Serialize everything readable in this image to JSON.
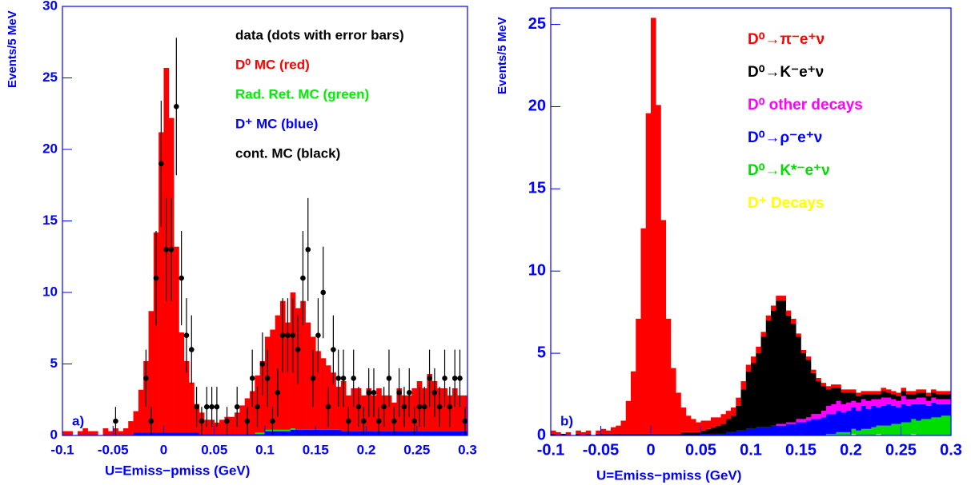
{
  "chart_data": [
    {
      "type": "histogram",
      "panel_label": "a)",
      "xlabel": "U=Emiss−pmiss (GeV)",
      "ylabel": "Events/5 MeV",
      "xlim": [
        -0.1,
        0.3
      ],
      "ylim": [
        0,
        30
      ],
      "xticks": [
        -0.1,
        -0.05,
        0,
        0.05,
        0.1,
        0.15,
        0.2,
        0.25,
        0.3
      ],
      "yticks": [
        0,
        5,
        10,
        15,
        20,
        25,
        30
      ],
      "legend": "upper right",
      "axis_color": "#0000ff",
      "bins": [
        -0.1,
        -0.095,
        -0.09,
        -0.085,
        -0.08,
        -0.075,
        -0.07,
        -0.065,
        -0.06,
        -0.055,
        -0.05,
        -0.045,
        -0.04,
        -0.035,
        -0.03,
        -0.025,
        -0.02,
        -0.015,
        -0.01,
        -0.005,
        0,
        0.005,
        0.01,
        0.015,
        0.02,
        0.025,
        0.03,
        0.035,
        0.04,
        0.045,
        0.05,
        0.055,
        0.06,
        0.065,
        0.07,
        0.075,
        0.08,
        0.085,
        0.09,
        0.095,
        0.1,
        0.105,
        0.11,
        0.115,
        0.12,
        0.125,
        0.13,
        0.135,
        0.14,
        0.145,
        0.15,
        0.155,
        0.16,
        0.165,
        0.17,
        0.175,
        0.18,
        0.185,
        0.19,
        0.195,
        0.2,
        0.205,
        0.21,
        0.215,
        0.22,
        0.225,
        0.23,
        0.235,
        0.24,
        0.245,
        0.25,
        0.255,
        0.26,
        0.265,
        0.27,
        0.275,
        0.28,
        0.285,
        0.29,
        0.295,
        0.3
      ],
      "points": {
        "name": "data (dots with error bars)",
        "color": "#000000",
        "values": [
          null,
          null,
          null,
          null,
          null,
          null,
          null,
          null,
          null,
          null,
          1,
          null,
          null,
          null,
          null,
          null,
          4,
          1,
          11,
          19,
          13,
          13,
          23,
          11,
          7,
          6,
          2,
          1,
          2,
          2,
          2,
          null,
          1,
          null,
          2,
          null,
          1,
          4,
          2,
          5,
          4,
          1,
          3,
          7,
          7,
          7,
          6,
          11,
          13,
          4,
          7,
          10,
          2,
          6,
          4,
          4,
          1,
          4,
          2,
          1,
          3,
          3,
          1,
          2,
          4,
          1,
          3,
          2,
          3,
          1,
          2,
          2,
          4,
          3,
          2,
          4,
          2,
          4,
          4,
          1
        ],
        "errors": [
          null,
          null,
          null,
          null,
          null,
          null,
          null,
          null,
          null,
          null,
          1,
          null,
          null,
          null,
          null,
          null,
          2,
          1,
          3.3,
          4.4,
          3.6,
          3.6,
          4.8,
          3.3,
          2.6,
          2.4,
          1.4,
          1,
          1.4,
          1.4,
          1.4,
          null,
          1,
          null,
          1.4,
          null,
          1,
          2,
          1.4,
          2.2,
          2,
          1,
          1.7,
          2.6,
          2.6,
          2.6,
          2.4,
          3.3,
          3.6,
          2,
          2.6,
          3.2,
          1.4,
          2.4,
          2,
          2,
          1,
          2,
          1.4,
          1,
          1.7,
          1.7,
          1,
          1.4,
          2,
          1,
          1.7,
          1.4,
          1.7,
          1,
          1.4,
          1.4,
          2,
          1.7,
          1.4,
          2,
          1.4,
          2,
          2,
          1
        ]
      },
      "series": [
        {
          "name": "D⁰ MC (red)",
          "color": "#ff0000",
          "values": [
            0.3,
            0.3,
            0,
            0.3,
            0.5,
            0.3,
            0.3,
            0,
            0.5,
            0.3,
            0.5,
            0.3,
            0.5,
            1,
            1.5,
            3,
            5,
            8.5,
            14,
            21,
            25.5,
            22,
            13,
            7,
            5,
            3.5,
            2,
            1.5,
            1,
            1,
            0.8,
            1,
            1.2,
            1.2,
            1.5,
            2,
            2.5,
            3,
            4,
            5,
            6.5,
            7,
            8,
            9,
            7.5,
            9.5,
            8.5,
            9,
            7.5,
            6.5,
            5.5,
            5,
            4.5,
            4,
            3,
            3.5,
            2.5,
            3,
            3,
            2.5,
            3,
            2.5,
            3,
            2.5,
            2.5,
            2,
            3,
            2.5,
            2.5,
            3,
            3.5,
            3,
            4,
            3.5,
            3,
            3,
            2.5,
            3,
            2.5,
            2.5
          ]
        },
        {
          "name": "Rad. Ret. MC (green)",
          "color": "#00ee00",
          "values": [
            0,
            0,
            0,
            0,
            0,
            0,
            0,
            0,
            0,
            0,
            0,
            0,
            0,
            0,
            0,
            0,
            0,
            0,
            0,
            0,
            0,
            0,
            0,
            0,
            0,
            0,
            0,
            0,
            0,
            0,
            0,
            0,
            0,
            0,
            0,
            0,
            0,
            0,
            0.1,
            0.1,
            0.1,
            0.1,
            0.1,
            0.1,
            0.1,
            0.1,
            0,
            0,
            0,
            0,
            0,
            0,
            0,
            0,
            0,
            0,
            0,
            0,
            0,
            0,
            0,
            0,
            0,
            0,
            0,
            0,
            0,
            0,
            0,
            0,
            0,
            0,
            0,
            0,
            0,
            0,
            0,
            0,
            0,
            0
          ]
        },
        {
          "name": "D⁺ MC (blue)",
          "color": "#0000ff",
          "values": [
            0,
            0,
            0,
            0,
            0,
            0,
            0,
            0,
            0,
            0,
            0,
            0,
            0,
            0,
            0.2,
            0.2,
            0.2,
            0.2,
            0.2,
            0.2,
            0.2,
            0.2,
            0.2,
            0.2,
            0.2,
            0.2,
            0.2,
            0.1,
            0.1,
            0.1,
            0.1,
            0.1,
            0.1,
            0.1,
            0.1,
            0.1,
            0.1,
            0.1,
            0.1,
            0.1,
            0.3,
            0.3,
            0.3,
            0.3,
            0.3,
            0.3,
            0.3,
            0.3,
            0.3,
            0.3,
            0.3,
            0.3,
            0.3,
            0.3,
            0.3,
            0.3,
            0.3,
            0.3,
            0.3,
            0.3,
            0.3,
            0.3,
            0.3,
            0.3,
            0.3,
            0.3,
            0.3,
            0.3,
            0.3,
            0.3,
            0.3,
            0.3,
            0.3,
            0.3,
            0.3,
            0.3,
            0.3,
            0.3,
            0.3,
            0.3
          ]
        },
        {
          "name": "cont. MC (black)",
          "color": "#000000",
          "values": [
            0,
            0,
            0,
            0,
            0,
            0,
            0,
            0,
            0,
            0,
            0,
            0,
            0,
            0,
            0,
            0,
            0,
            0,
            0,
            0,
            0,
            0,
            0,
            0,
            0,
            0,
            0,
            0,
            0,
            0,
            0,
            0,
            0,
            0,
            0,
            0,
            0,
            0,
            0,
            0,
            0,
            0,
            0,
            0,
            0,
            0.1,
            0.1,
            0.1,
            0.1,
            0.1,
            0.1,
            0.1,
            0.1,
            0.1,
            0.1,
            0,
            0,
            0,
            0,
            0,
            0,
            0,
            0,
            0,
            0,
            0,
            0,
            0,
            0,
            0,
            0,
            0,
            0,
            0,
            0,
            0,
            0,
            0,
            0,
            0
          ]
        }
      ]
    },
    {
      "type": "histogram",
      "panel_label": "b)",
      "xlabel": "U=Emiss−pmiss (GeV)",
      "ylabel": "Events/5 MeV",
      "xlim": [
        -0.1,
        0.3
      ],
      "ylim": [
        0,
        26
      ],
      "xticks": [
        -0.1,
        -0.05,
        0,
        0.05,
        0.1,
        0.15,
        0.2,
        0.25,
        0.3
      ],
      "yticks": [
        0,
        5,
        10,
        15,
        20,
        25
      ],
      "legend": "upper right",
      "axis_color": "#0000ff",
      "bins": [
        -0.1,
        -0.095,
        -0.09,
        -0.085,
        -0.08,
        -0.075,
        -0.07,
        -0.065,
        -0.06,
        -0.055,
        -0.05,
        -0.045,
        -0.04,
        -0.035,
        -0.03,
        -0.025,
        -0.02,
        -0.015,
        -0.01,
        -0.005,
        0,
        0.005,
        0.01,
        0.015,
        0.02,
        0.025,
        0.03,
        0.035,
        0.04,
        0.045,
        0.05,
        0.055,
        0.06,
        0.065,
        0.07,
        0.075,
        0.08,
        0.085,
        0.09,
        0.095,
        0.1,
        0.105,
        0.11,
        0.115,
        0.12,
        0.125,
        0.13,
        0.135,
        0.14,
        0.145,
        0.15,
        0.155,
        0.16,
        0.165,
        0.17,
        0.175,
        0.18,
        0.185,
        0.19,
        0.195,
        0.2,
        0.205,
        0.21,
        0.215,
        0.22,
        0.225,
        0.23,
        0.235,
        0.24,
        0.245,
        0.25,
        0.255,
        0.26,
        0.265,
        0.27,
        0.275,
        0.28,
        0.285,
        0.29,
        0.295,
        0.3
      ],
      "series": [
        {
          "name": "D⁰→π⁻e⁺ν",
          "color": "#ff0000",
          "values": [
            0.2,
            0.2,
            0,
            0.2,
            0,
            0.2,
            0.2,
            0.2,
            0,
            0.2,
            0.3,
            0.2,
            0.4,
            0.5,
            0.8,
            2,
            3.8,
            7,
            12.5,
            19.5,
            25.3,
            20,
            13,
            7,
            4,
            2.5,
            1.5,
            1,
            0.8,
            0.6,
            0.6,
            0.5,
            0.6,
            0.5,
            0.6,
            0.5,
            0.5,
            0.5,
            0.5,
            0.4,
            0.4,
            0.4,
            0.3,
            0.3,
            0.3,
            0.3,
            0.3,
            0.3,
            0.3,
            0.2,
            0.2,
            0.2,
            0.2,
            0.2,
            0.2,
            0.2,
            0.2,
            0.2,
            0.2,
            0.2,
            0.2,
            0.2,
            0.2,
            0.2,
            0.2,
            0.2,
            0.2,
            0.2,
            0.2,
            0.2,
            0.2,
            0.2,
            0.2,
            0.2,
            0.2,
            0.2,
            0.2,
            0.2,
            0.2,
            0.2
          ]
        },
        {
          "name": "D⁰→K⁻e⁺ν",
          "color": "#000000",
          "values": [
            0.1,
            0,
            0.1,
            0,
            0,
            0.1,
            0,
            0.1,
            0,
            0.1,
            0.1,
            0.1,
            0.1,
            0.1,
            0.1,
            0.1,
            0.1,
            0.1,
            0.1,
            0.1,
            0.1,
            0.1,
            0.1,
            0.1,
            0.1,
            0.1,
            0.2,
            0.2,
            0.2,
            0.2,
            0.2,
            0.3,
            0.4,
            0.5,
            0.6,
            0.8,
            1,
            1.5,
            2.5,
            3.5,
            4,
            4.5,
            5.5,
            6.5,
            7,
            7.5,
            7.5,
            6.5,
            6,
            5,
            4,
            3.5,
            2.5,
            2,
            1.5,
            1,
            1,
            0.8,
            0.7,
            0.6,
            0.5,
            0.4,
            0.3,
            0.4,
            0.3,
            0.3,
            0.4,
            0.3,
            0.3,
            0.3,
            0.3,
            0.3,
            0.3,
            0.3,
            0.3,
            0.3,
            0.3,
            0.3,
            0.3,
            0.3
          ]
        },
        {
          "name": "D⁰ other decays",
          "color": "#ff00ff",
          "values": [
            0,
            0,
            0,
            0,
            0,
            0,
            0,
            0,
            0,
            0,
            0,
            0,
            0,
            0,
            0,
            0,
            0,
            0,
            0,
            0,
            0,
            0,
            0,
            0,
            0,
            0,
            0,
            0,
            0,
            0,
            0,
            0,
            0,
            0,
            0,
            0,
            0,
            0,
            0,
            0,
            0,
            0,
            0,
            0,
            0,
            0.1,
            0.1,
            0.1,
            0.1,
            0.2,
            0.2,
            0.2,
            0.3,
            0.3,
            0.4,
            0.5,
            0.6,
            0.6,
            0.5,
            0.5,
            0.4,
            0.5,
            0.4,
            0.5,
            0.4,
            0.5,
            0.5,
            0.4,
            0.4,
            0.4,
            0.5,
            0.4,
            0.3,
            0.4,
            0.4,
            0.3,
            0.3,
            0.3,
            0.3,
            0.3
          ]
        },
        {
          "name": "D⁰→ρ⁻e⁺ν",
          "color": "#0000ff",
          "values": [
            0,
            0,
            0,
            0,
            0,
            0,
            0,
            0,
            0,
            0,
            0,
            0,
            0,
            0,
            0,
            0,
            0,
            0,
            0,
            0,
            0,
            0,
            0,
            0,
            0,
            0,
            0,
            0,
            0,
            0,
            0.1,
            0.1,
            0.1,
            0.1,
            0.1,
            0.2,
            0.2,
            0.3,
            0.3,
            0.4,
            0.4,
            0.5,
            0.5,
            0.5,
            0.6,
            0.6,
            0.6,
            0.7,
            0.7,
            0.8,
            0.8,
            0.9,
            1,
            1,
            1.1,
            1.2,
            1.2,
            1.3,
            1.2,
            1.3,
            1.3,
            1.2,
            1.4,
            1.2,
            1.3,
            1.1,
            1.2,
            1.3,
            1.1,
            1,
            1.1,
            1,
            0.9,
            1,
            0.9,
            0.8,
            0.9,
            0.8,
            0.7,
            0.7
          ]
        },
        {
          "name": "D⁰→K*⁻e⁺ν",
          "color": "#00dd00",
          "values": [
            0,
            0,
            0,
            0,
            0,
            0,
            0,
            0,
            0,
            0,
            0,
            0,
            0,
            0,
            0,
            0,
            0,
            0,
            0,
            0,
            0,
            0,
            0,
            0,
            0,
            0,
            0,
            0,
            0,
            0,
            0,
            0,
            0,
            0,
            0,
            0,
            0,
            0,
            0,
            0,
            0,
            0,
            0,
            0,
            0,
            0,
            0,
            0,
            0,
            0,
            0,
            0,
            0,
            0,
            0,
            0.1,
            0.1,
            0.2,
            0.2,
            0.2,
            0.3,
            0.3,
            0.4,
            0.4,
            0.5,
            0.5,
            0.6,
            0.6,
            0.7,
            0.7,
            0.8,
            0.8,
            0.9,
            0.9,
            1,
            1,
            1.1,
            1.1,
            1.2,
            1.2
          ]
        },
        {
          "name": "D⁺ Decays",
          "color": "#ffff00",
          "values": [
            0,
            0,
            0,
            0,
            0,
            0,
            0,
            0,
            0,
            0,
            0,
            0,
            0,
            0,
            0,
            0,
            0,
            0,
            0,
            0,
            0,
            0,
            0,
            0,
            0,
            0,
            0,
            0,
            0,
            0,
            0,
            0,
            0,
            0,
            0,
            0,
            0,
            0,
            0,
            0,
            0,
            0,
            0,
            0,
            0,
            0,
            0,
            0,
            0,
            0,
            0,
            0,
            0,
            0,
            0,
            0,
            0,
            0,
            0,
            0,
            0.1,
            0,
            0,
            0,
            0,
            0.1,
            0,
            0,
            0,
            0,
            0,
            0,
            0.1,
            0,
            0,
            0,
            0,
            0,
            0,
            0
          ]
        }
      ]
    }
  ]
}
